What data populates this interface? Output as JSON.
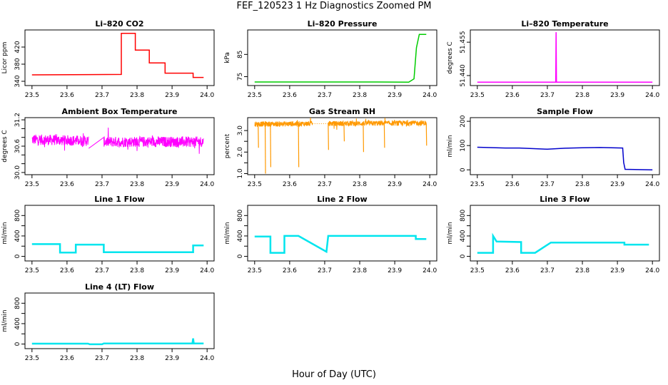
{
  "figure": {
    "title": "FEF_120523  1 Hz Diagnostics Zoomed PM",
    "xlabel": "Hour of Day (UTC)"
  },
  "chart_data": [
    {
      "type": "line",
      "title": "Li–820 CO2",
      "ylabel": "Licor ppm",
      "xlabel": "",
      "xlim": [
        23.48,
        24.02
      ],
      "ylim": [
        330,
        460
      ],
      "xticks": [
        23.5,
        23.6,
        23.7,
        23.8,
        23.9,
        24.0
      ],
      "xticklabels": [
        "23.5",
        "23.6",
        "23.7",
        "23.8",
        "23.9",
        "24.0"
      ],
      "yticks": [
        340,
        380,
        420
      ],
      "yticklabels": [
        "340",
        "380",
        "420"
      ],
      "color": "#ff0000",
      "style": "step",
      "series": [
        {
          "x": [
            23.5,
            23.755,
            23.755,
            23.795,
            23.795,
            23.835,
            23.835,
            23.88,
            23.88,
            23.96,
            23.96,
            23.99
          ],
          "values": [
            355,
            356,
            452,
            452,
            413,
            413,
            383,
            383,
            359,
            359,
            349,
            349
          ]
        }
      ]
    },
    {
      "type": "line",
      "title": "Li–820 Pressure",
      "ylabel": "kPa",
      "xlabel": "",
      "xlim": [
        23.48,
        24.02
      ],
      "ylim": [
        71,
        96
      ],
      "xticks": [
        23.5,
        23.6,
        23.7,
        23.8,
        23.9,
        24.0
      ],
      "xticklabels": [
        "23.5",
        "23.6",
        "23.7",
        "23.8",
        "23.9",
        "24.0"
      ],
      "yticks": [
        75,
        85
      ],
      "yticklabels": [
        "75",
        "85"
      ],
      "color": "#00cc00",
      "style": "line",
      "series": [
        {
          "x": [
            23.5,
            23.85,
            23.94,
            23.955,
            23.962,
            23.97,
            23.99
          ],
          "values": [
            72.6,
            72.6,
            72.5,
            74,
            88,
            94,
            94
          ]
        }
      ]
    },
    {
      "type": "line",
      "title": "Li–820 Temperature",
      "ylabel": "degrees C",
      "xlabel": "",
      "xlim": [
        23.48,
        24.02
      ],
      "ylim": [
        51.4355,
        51.4605
      ],
      "xticks": [
        23.5,
        23.6,
        23.7,
        23.8,
        23.9,
        24.0
      ],
      "xticklabels": [
        "23.5",
        "23.6",
        "23.7",
        "23.8",
        "23.9",
        "24.0"
      ],
      "yticks": [
        51.44,
        51.455
      ],
      "yticklabels": [
        "51.440",
        "51.455"
      ],
      "extra_yticklabels": [
        "51.455",
        "51.440"
      ],
      "color": "#ff00ff",
      "style": "line",
      "series": [
        {
          "x": [
            23.5,
            23.724,
            23.725,
            23.726,
            24.0
          ],
          "values": [
            51.437,
            51.437,
            51.4595,
            51.437,
            51.437
          ]
        }
      ]
    },
    {
      "type": "line",
      "title": "Ambient Box Temperature",
      "ylabel": "degrees C",
      "xlabel": "",
      "xlim": [
        23.48,
        24.02
      ],
      "ylim": [
        29.95,
        31.25
      ],
      "xticks": [
        23.5,
        23.6,
        23.7,
        23.8,
        23.9,
        24.0
      ],
      "xticklabels": [
        "23.5",
        "23.6",
        "23.7",
        "23.8",
        "23.9",
        "24.0"
      ],
      "yticks": [
        30.0,
        30.2,
        30.4,
        30.6,
        30.8,
        31.0,
        31.2
      ],
      "yticklabels": [
        "30.0",
        "",
        "",
        "30.6",
        "",
        "",
        "31.2"
      ],
      "color": "#ff00ff",
      "style": "noisy",
      "series": [
        {
          "x": [
            23.5,
            23.66,
            23.71,
            23.99
          ],
          "values": [
            30.75,
            30.72,
            30.7,
            30.7
          ]
        }
      ],
      "gaps": [
        [
          23.662,
          23.705
        ]
      ],
      "gap_line": [
        [
          23.662,
          30.55
        ],
        [
          23.705,
          30.8
        ]
      ],
      "noise": 0.12
    },
    {
      "type": "line",
      "title": "Gas Stream RH",
      "ylabel": "percent",
      "xlabel": "",
      "xlim": [
        23.48,
        24.02
      ],
      "ylim": [
        0.95,
        3.6
      ],
      "xticks": [
        23.5,
        23.6,
        23.7,
        23.8,
        23.9,
        24.0
      ],
      "xticklabels": [
        "23.5",
        "23.6",
        "23.7",
        "23.8",
        "23.9",
        "24.0"
      ],
      "yticks": [
        1.0,
        1.5,
        2.0,
        2.5,
        3.0
      ],
      "yticklabels": [
        "1.0",
        "",
        "2.0",
        "",
        "3.0"
      ],
      "color": "#ff9900",
      "style": "noisy",
      "series": [
        {
          "x": [
            23.5,
            23.99
          ],
          "values": [
            3.3,
            3.35
          ]
        }
      ],
      "gaps": [
        [
          23.665,
          23.71
        ]
      ],
      "noise": 0.12,
      "dips": [
        [
          23.51,
          2.2
        ],
        [
          23.53,
          1.0
        ],
        [
          23.545,
          1.3
        ],
        [
          23.625,
          1.3
        ],
        [
          23.71,
          2.1
        ],
        [
          23.755,
          2.5
        ],
        [
          23.81,
          2.0
        ],
        [
          23.87,
          2.2
        ],
        [
          23.99,
          2.3
        ]
      ]
    },
    {
      "type": "line",
      "title": "Sample Flow",
      "ylabel": "ml/min",
      "xlabel": "",
      "xlim": [
        23.48,
        24.02
      ],
      "ylim": [
        -20,
        215
      ],
      "xticks": [
        23.5,
        23.6,
        23.7,
        23.8,
        23.9,
        24.0
      ],
      "xticklabels": [
        "23.5",
        "23.6",
        "23.7",
        "23.8",
        "23.9",
        "24.0"
      ],
      "yticks": [
        0,
        100,
        200
      ],
      "yticklabels": [
        "0",
        "100",
        "200"
      ],
      "color": "#0000cc",
      "style": "line",
      "series": [
        {
          "x": [
            23.5,
            23.58,
            23.62,
            23.7,
            23.75,
            23.8,
            23.85,
            23.915,
            23.918,
            23.922,
            24.0
          ],
          "values": [
            93,
            90,
            90,
            85,
            89,
            91,
            92,
            90,
            30,
            2,
            0
          ]
        }
      ]
    },
    {
      "type": "line",
      "title": "Line 1 Flow",
      "ylabel": "ml/min",
      "xlabel": "",
      "xlim": [
        23.48,
        24.02
      ],
      "ylim": [
        -90,
        1000
      ],
      "xticks": [
        23.5,
        23.6,
        23.7,
        23.8,
        23.9,
        24.0
      ],
      "xticklabels": [
        "23.5",
        "23.6",
        "23.7",
        "23.8",
        "23.9",
        "24.0"
      ],
      "yticks": [
        0,
        200,
        400,
        600,
        800
      ],
      "yticklabels": [
        "0",
        "",
        "400",
        "",
        "800"
      ],
      "color": "#00e5ee",
      "style": "step",
      "series": [
        {
          "x": [
            23.5,
            23.58,
            23.58,
            23.625,
            23.625,
            23.705,
            23.705,
            23.96,
            23.96,
            23.99
          ],
          "values": [
            240,
            240,
            75,
            75,
            230,
            230,
            80,
            80,
            215,
            215
          ]
        }
      ]
    },
    {
      "type": "line",
      "title": "Line 2 Flow",
      "ylabel": "ml/min",
      "xlabel": "",
      "xlim": [
        23.48,
        24.02
      ],
      "ylim": [
        -90,
        1000
      ],
      "xticks": [
        23.5,
        23.6,
        23.7,
        23.8,
        23.9,
        24.0
      ],
      "xticklabels": [
        "23.5",
        "23.6",
        "23.7",
        "23.8",
        "23.9",
        "24.0"
      ],
      "yticks": [
        0,
        200,
        400,
        600,
        800
      ],
      "yticklabels": [
        "0",
        "",
        "400",
        "",
        "800"
      ],
      "color": "#00e5ee",
      "style": "step",
      "series": [
        {
          "x": [
            23.5,
            23.545,
            23.545,
            23.585,
            23.585,
            23.625,
            23.705,
            23.71,
            23.96,
            23.96,
            23.99
          ],
          "values": [
            390,
            390,
            70,
            70,
            400,
            400,
            90,
            400,
            400,
            340,
            340
          ]
        }
      ]
    },
    {
      "type": "line",
      "title": "Line 3 Flow",
      "ylabel": "ml/min",
      "xlabel": "",
      "xlim": [
        23.48,
        24.02
      ],
      "ylim": [
        -90,
        1000
      ],
      "xticks": [
        23.5,
        23.6,
        23.7,
        23.8,
        23.9,
        24.0
      ],
      "xticklabels": [
        "23.5",
        "23.6",
        "23.7",
        "23.8",
        "23.9",
        "24.0"
      ],
      "yticks": [
        0,
        200,
        400,
        600,
        800
      ],
      "yticklabels": [
        "0",
        "",
        "400",
        "",
        "800"
      ],
      "color": "#00e5ee",
      "style": "step",
      "series": [
        {
          "x": [
            23.5,
            23.545,
            23.545,
            23.555,
            23.625,
            23.625,
            23.665,
            23.71,
            23.92,
            23.92,
            23.99
          ],
          "values": [
            70,
            70,
            400,
            290,
            280,
            70,
            70,
            270,
            270,
            230,
            230
          ]
        }
      ]
    },
    {
      "type": "line",
      "title": "Line 4 (LT) Flow",
      "ylabel": "ml/min",
      "xlabel": "",
      "xlim": [
        23.48,
        24.02
      ],
      "ylim": [
        -90,
        1000
      ],
      "xticks": [
        23.5,
        23.6,
        23.7,
        23.8,
        23.9,
        24.0
      ],
      "xticklabels": [
        "23.5",
        "23.6",
        "23.7",
        "23.8",
        "23.9",
        "24.0"
      ],
      "yticks": [
        0,
        200,
        400,
        600,
        800
      ],
      "yticklabels": [
        "0",
        "",
        "400",
        "",
        "800"
      ],
      "color": "#00e5ee",
      "style": "line",
      "series": [
        {
          "x": [
            23.5,
            23.66,
            23.665,
            23.7,
            23.705,
            23.958,
            23.96,
            23.962,
            23.99
          ],
          "values": [
            8,
            8,
            -5,
            -5,
            10,
            10,
            110,
            12,
            10
          ]
        }
      ]
    }
  ]
}
